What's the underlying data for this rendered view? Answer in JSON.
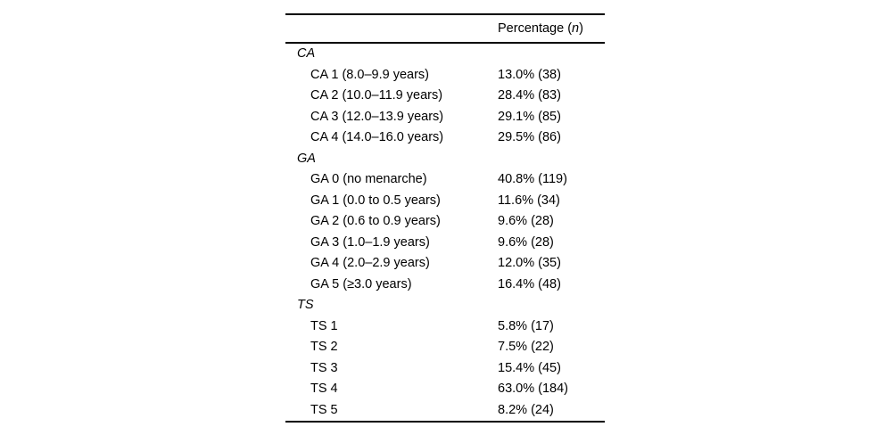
{
  "table": {
    "header": {
      "pre": "Percentage (",
      "n": "n",
      "post": ")"
    },
    "sections": [
      {
        "label": "CA",
        "rows": [
          {
            "label": "CA 1 (8.0–9.9 years)",
            "value": "13.0% (38)"
          },
          {
            "label": "CA 2 (10.0–11.9 years)",
            "value": "28.4% (83)"
          },
          {
            "label": "CA 3 (12.0–13.9 years)",
            "value": "29.1% (85)"
          },
          {
            "label": "CA 4 (14.0–16.0 years)",
            "value": "29.5% (86)"
          }
        ]
      },
      {
        "label": "GA",
        "rows": [
          {
            "label": "GA 0 (no menarche)",
            "value": "40.8% (119)"
          },
          {
            "label": "GA 1 (0.0 to 0.5 years)",
            "value": "11.6% (34)"
          },
          {
            "label": "GA 2 (0.6 to 0.9 years)",
            "value": "9.6% (28)"
          },
          {
            "label": "GA 3 (1.0–1.9 years)",
            "value": "9.6% (28)"
          },
          {
            "label": "GA 4 (2.0–2.9 years)",
            "value": "12.0% (35)"
          },
          {
            "label": "GA 5 (≥3.0 years)",
            "value": "16.4% (48)"
          }
        ]
      },
      {
        "label": "TS",
        "rows": [
          {
            "label": "TS 1",
            "value": "5.8% (17)"
          },
          {
            "label": "TS 2",
            "value": "7.5% (22)"
          },
          {
            "label": "TS 3",
            "value": "15.4% (45)"
          },
          {
            "label": "TS 4",
            "value": "63.0% (184)"
          },
          {
            "label": "TS 5",
            "value": "8.2% (24)"
          }
        ]
      }
    ]
  }
}
